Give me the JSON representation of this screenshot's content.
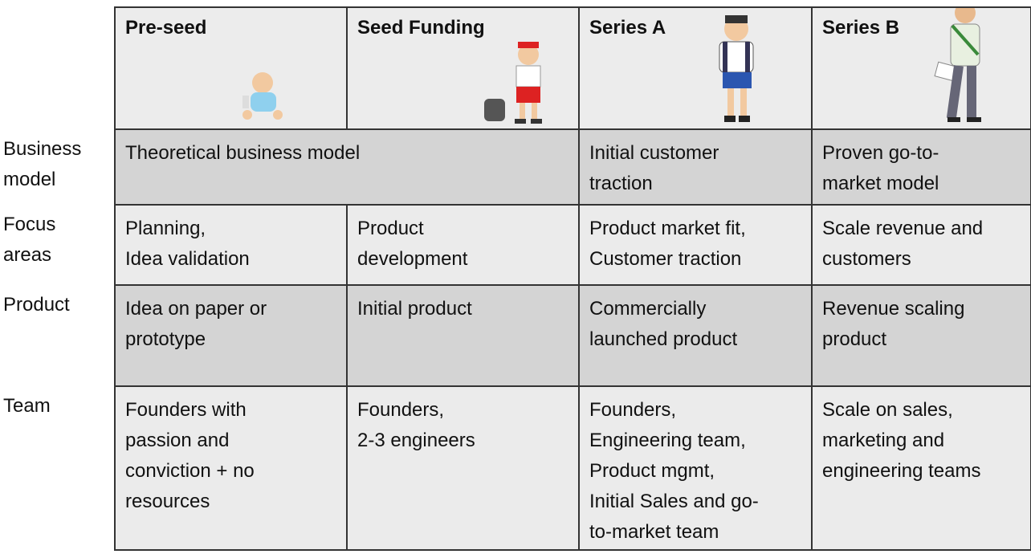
{
  "table": {
    "columns": [
      "Pre-seed",
      "Seed Funding",
      "Series A",
      "Series B"
    ],
    "rows": [
      {
        "label": "Business\nmodel",
        "cells": [
          "Theoretical business model",
          "Initial customer\ntraction",
          "Proven go-to-\nmarket model"
        ]
      },
      {
        "label": "Focus\nareas",
        "cells": [
          "Planning,\nIdea validation",
          "Product\ndevelopment",
          "Product market fit,\nCustomer traction",
          "Scale revenue and\ncustomers"
        ]
      },
      {
        "label": "Product",
        "cells": [
          "Idea on paper or\nprototype",
          "Initial product",
          "Commercially\nlaunched product",
          "Revenue scaling\nproduct"
        ]
      },
      {
        "label": "Team",
        "cells": [
          "Founders with\npassion and\nconviction + no\nresources",
          "Founders,\n2-3 engineers",
          "Founders,\nEngineering team,\nProduct mgmt,\nInitial Sales and go-\nto-market team",
          "Scale on sales,\nmarketing and\nengineering teams"
        ]
      }
    ]
  }
}
